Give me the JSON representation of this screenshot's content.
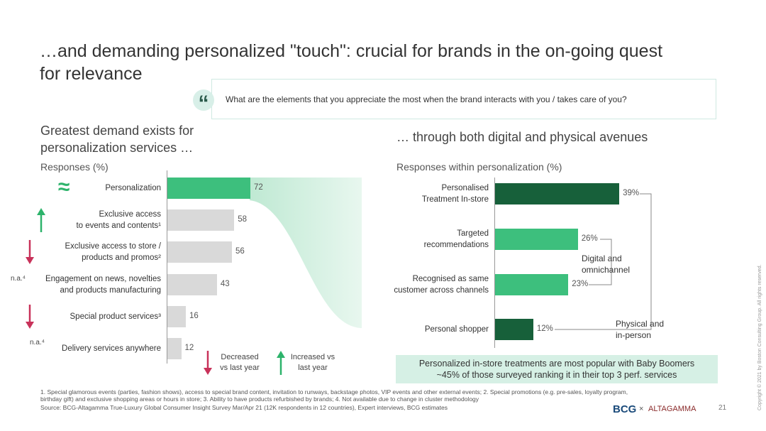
{
  "title": "…and demanding personalized \"touch\": crucial for brands in the on-going quest\nfor relevance",
  "quote": "What are the elements that you appreciate the most when the brand interacts with you / takes care of you?",
  "quote_mark": "“",
  "chart_data": [
    {
      "type": "bar",
      "orientation": "horizontal",
      "subtitle": "Greatest demand exists for\npersonalization services …",
      "axis_label": "Responses (%)",
      "categories": [
        "Personalization",
        "Exclusive access\nto events and contents¹",
        "Exclusive access to store /\nproducts and promos²",
        "Engagement on news, novelties\nand products manufacturing",
        "Special product services³",
        "Delivery services anywhere"
      ],
      "values": [
        72,
        58,
        56,
        43,
        16,
        12
      ],
      "colors": [
        "#3dbf7d",
        "#d9d9d9",
        "#d9d9d9",
        "#d9d9d9",
        "#d9d9d9",
        "#d9d9d9"
      ],
      "markers": [
        "≈",
        "up",
        "down",
        "n.a.⁴",
        "down",
        "n.a.⁴"
      ],
      "xlim": [
        0,
        100
      ],
      "legend": [
        {
          "label": "Decreased\nvs last year",
          "marker": "down"
        },
        {
          "label": "Increased vs\nlast year",
          "marker": "up"
        }
      ]
    },
    {
      "type": "bar",
      "orientation": "horizontal",
      "subtitle": "… through both digital and physical avenues",
      "axis_label": "Responses within personalization (%)",
      "categories": [
        "Personalised\nTreatment In-store",
        "Targeted\nrecommendations",
        "Recognised as same\ncustomer across channels",
        "Personal shopper"
      ],
      "values": [
        39,
        26,
        23,
        12
      ],
      "value_labels": [
        "39%",
        "26%",
        "23%",
        "12%"
      ],
      "colors": [
        "#17603a",
        "#3dbf7d",
        "#3dbf7d",
        "#17603a"
      ],
      "xlim": [
        0,
        45
      ],
      "annotations": [
        "Digital and\nomnichannel",
        "Physical and\nin-person"
      ]
    }
  ],
  "callout": "Personalized in-store treatments are most popular with Baby Boomers\n~45% of those surveyed ranking it in their top 3 perf. services",
  "footnotes": "1. Special glamorous events (parties, fashion shows), access to special brand content, invitation to runways, backstage photos, VIP events and other external events; 2. Special promotions (e.g. pre-sales, loyalty program, birthday gift) and exclusive shopping areas or hours in store; 3. Ability to have products refurbished by brands; 4. Not available due to change in cluster methodology",
  "source": "Source: BCG-Altagamma True-Luxury Global Consumer Insight Survey Mar/Apr 21 (12K respondents in 12 countries), Expert interviews, BCG estimates",
  "logos": [
    "BCG",
    "×",
    "ALTAGAMMA"
  ],
  "page_number": "21",
  "copyright": "Copyright © 2021 by Boston Consulting Group. All rights reserved."
}
